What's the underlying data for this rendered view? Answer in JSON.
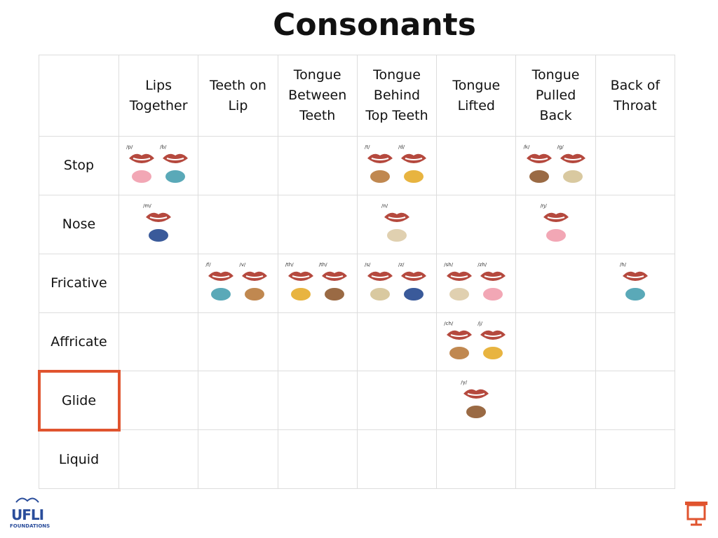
{
  "title": "Consonants",
  "columns": [
    "Lips Together",
    "Teeth on Lip",
    "Tongue Between Teeth",
    "Tongue Behind Top Teeth",
    "Tongue Lifted",
    "Tongue Pulled Back",
    "Back of Throat"
  ],
  "rows": [
    {
      "label": "Stop",
      "cells": [
        [
          "/p/",
          "/b/"
        ],
        [],
        [],
        [
          "/t/",
          "/d/"
        ],
        [],
        [
          "/k/",
          "/g/"
        ],
        []
      ]
    },
    {
      "label": "Nose",
      "cells": [
        [
          "/m/"
        ],
        [],
        [],
        [
          "/n/"
        ],
        [],
        [
          "/ŋ/"
        ],
        []
      ]
    },
    {
      "label": "Fricative",
      "cells": [
        [],
        [
          "/f/",
          "/v/"
        ],
        [
          "/th/",
          "/th/"
        ],
        [
          "/s/",
          "/z/"
        ],
        [
          "/sh/",
          "/zh/"
        ],
        [],
        [
          "/h/"
        ]
      ]
    },
    {
      "label": "Affricate",
      "cells": [
        [],
        [],
        [],
        [],
        [
          "/ch/",
          "/j/"
        ],
        [],
        []
      ]
    },
    {
      "label": "Glide",
      "cells": [
        [],
        [],
        [],
        [],
        [
          "/y/"
        ],
        [],
        []
      ]
    },
    {
      "label": "Liquid",
      "cells": [
        [],
        [],
        [],
        [],
        [],
        [],
        []
      ]
    }
  ],
  "highlight": "Glide",
  "logo": {
    "name": "UFLI",
    "sub": "FOUNDATIONS"
  }
}
